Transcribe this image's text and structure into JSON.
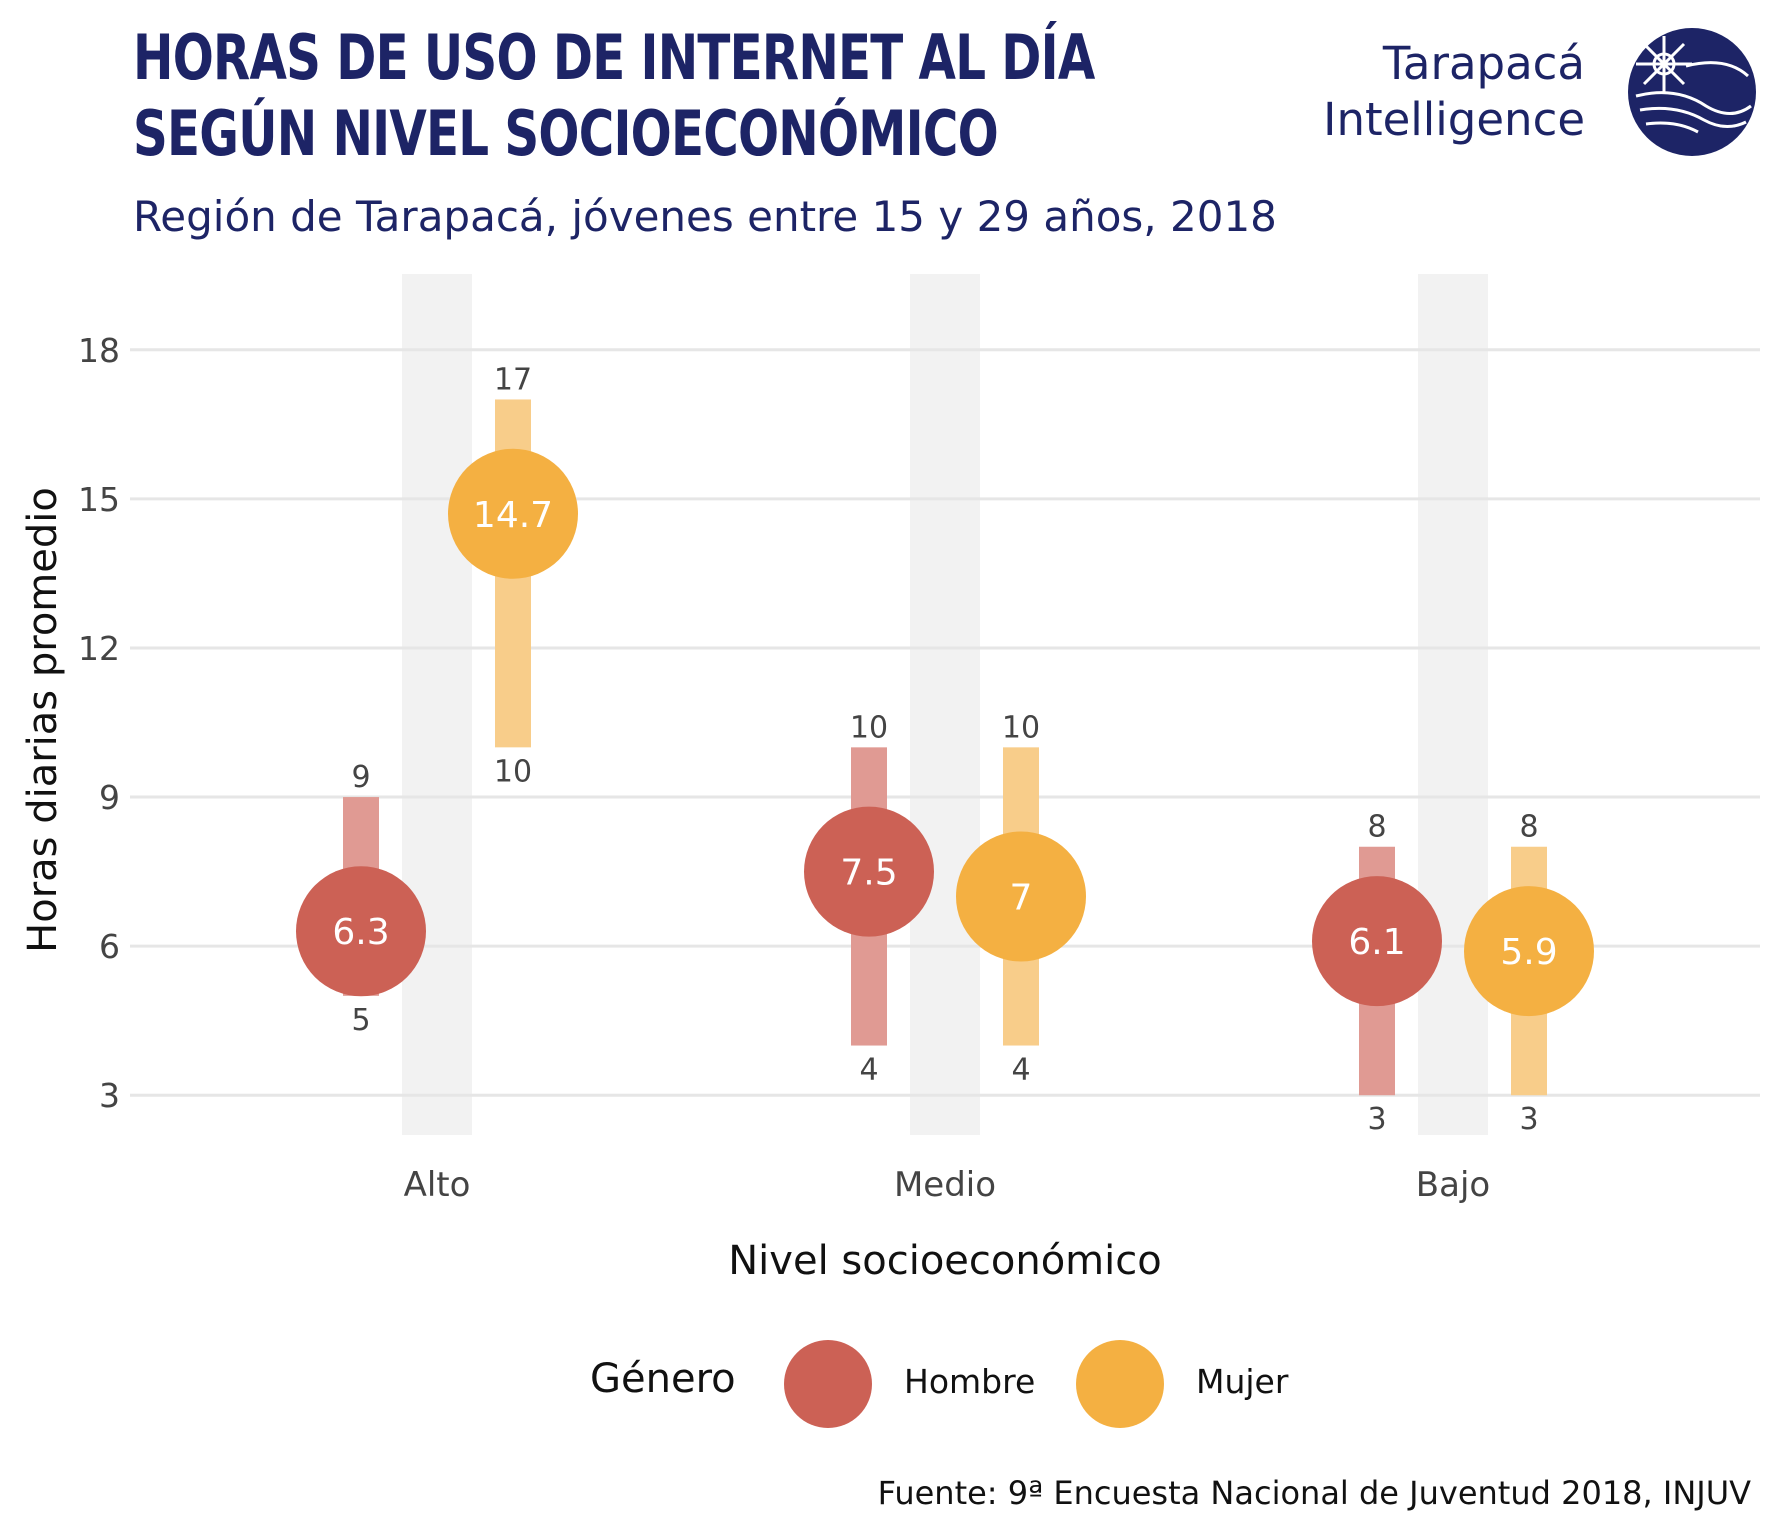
{
  "header": {
    "title_line1": "HORAS DE USO DE INTERNET AL DÍA",
    "title_line2": "SEGÚN NIVEL SOCIOECONÓMICO",
    "subtitle": "Región de Tarapacá, jóvenes entre 15 y 29 años, 2018"
  },
  "brand": {
    "line1": "Tarapacá",
    "line2": "Intelligence",
    "logo_icon": "globe-logo-icon"
  },
  "footer": {
    "source": "Fuente: 9ª Encuesta Nacional de Juventud 2018, INJUV"
  },
  "chart_data": {
    "type": "dot-range",
    "xlabel": "Nivel socioeconómico",
    "ylabel": "Horas diarias promedio",
    "categories": [
      "Alto",
      "Medio",
      "Bajo"
    ],
    "yticks": [
      3,
      6,
      9,
      12,
      15,
      18
    ],
    "ylim": [
      2.2,
      18.8
    ],
    "grid": true,
    "legend_title": "Género",
    "legend_position": "bottom",
    "series": [
      {
        "name": "Hombre",
        "color": "#cc6155",
        "range_color": "#e09a93",
        "means": [
          6.3,
          7.5,
          6.1
        ],
        "mins": [
          5,
          4,
          3
        ],
        "maxs": [
          9,
          10,
          8
        ]
      },
      {
        "name": "Mujer",
        "color": "#f4b042",
        "range_color": "#f8cd8a",
        "means": [
          14.7,
          7,
          5.9
        ],
        "mins": [
          10,
          4,
          3
        ],
        "maxs": [
          17,
          10,
          8
        ]
      }
    ]
  }
}
